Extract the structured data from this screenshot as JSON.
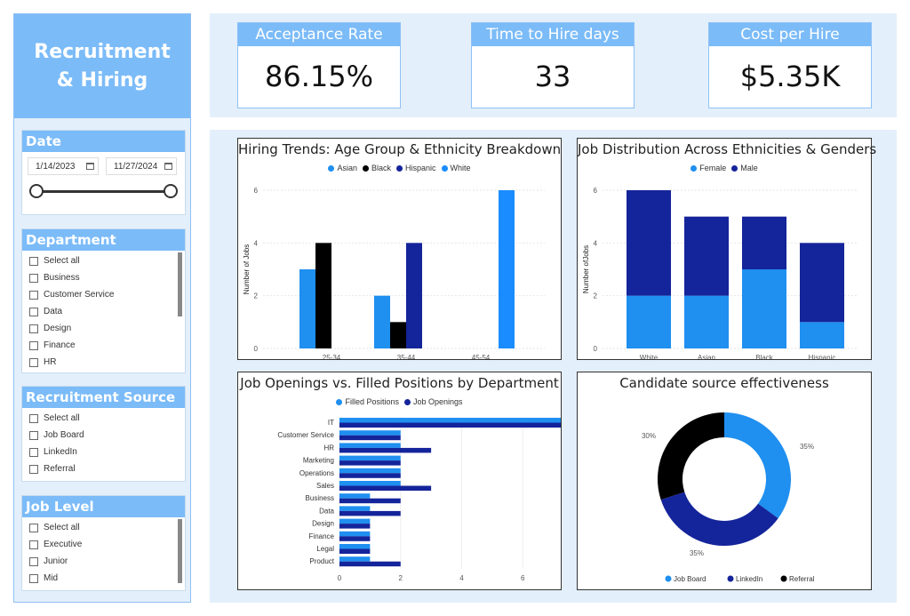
{
  "sidebar": {
    "title": "Recruitment & Hiring",
    "date_slicer": {
      "title": "Date",
      "start": "1/14/2023",
      "end": "11/27/2024"
    },
    "department_slicer": {
      "title": "Department",
      "items": [
        "Select all",
        "Business",
        "Customer Service",
        "Data",
        "Design",
        "Finance",
        "HR"
      ]
    },
    "source_slicer": {
      "title": "Recruitment Source",
      "items": [
        "Select all",
        "Job Board",
        "LinkedIn",
        "Referral"
      ]
    },
    "level_slicer": {
      "title": "Job Level",
      "items": [
        "Select all",
        "Executive",
        "Junior",
        "Mid"
      ]
    }
  },
  "kpis": [
    {
      "label": "Acceptance Rate",
      "value": "86.15%"
    },
    {
      "label": "Time to Hire days",
      "value": "33"
    },
    {
      "label": "Cost per Hire",
      "value": "$5.35K"
    }
  ],
  "colors": {
    "accent": "#7bbbf8",
    "band": "#e3effb",
    "asian": "#1f8ff0",
    "black": "#000000",
    "hispanic": "#14249a",
    "white": "#1a8cff",
    "female": "#1f8ff0",
    "male": "#14249a"
  },
  "chart_data": [
    {
      "type": "bar",
      "title": "Hiring Trends: Age Group & Ethnicity Breakdown",
      "ylabel": "Number of Jobs",
      "xlabel": "",
      "categories": [
        "25-34",
        "35-44",
        "45-54"
      ],
      "series": [
        {
          "name": "Asian",
          "color": "#1f8ff0",
          "values": [
            3,
            2,
            0
          ]
        },
        {
          "name": "Black",
          "color": "#000000",
          "values": [
            4,
            1,
            0
          ]
        },
        {
          "name": "Hispanic",
          "color": "#14249a",
          "values": [
            0,
            4,
            0
          ]
        },
        {
          "name": "White",
          "color": "#1a8cff",
          "values": [
            0,
            0,
            6
          ]
        }
      ],
      "ylim": [
        0,
        6
      ],
      "yticks": [
        0,
        2,
        4,
        6
      ],
      "legend": "top"
    },
    {
      "type": "bar",
      "stacked": true,
      "title": "Job Distribution Across Ethnicities & Genders",
      "ylabel": "Number ofJobs",
      "xlabel": "",
      "categories": [
        "White",
        "Asian",
        "Black",
        "Hispanic"
      ],
      "series": [
        {
          "name": "Female",
          "color": "#1f8ff0",
          "values": [
            2,
            2,
            3,
            1
          ]
        },
        {
          "name": "Male",
          "color": "#14249a",
          "values": [
            4,
            3,
            2,
            3
          ]
        }
      ],
      "ylim": [
        0,
        6
      ],
      "yticks": [
        0,
        2,
        4,
        6
      ],
      "legend": "top"
    },
    {
      "type": "bar",
      "orientation": "horizontal",
      "title": "Job Openings vs. Filled Positions by Department",
      "categories": [
        "IT",
        "Customer Service",
        "HR",
        "Marketing",
        "Operations",
        "Sales",
        "Business",
        "Data",
        "Design",
        "Finance",
        "Legal",
        "Product"
      ],
      "series": [
        {
          "name": "Filled Positions",
          "color": "#1f8ff0",
          "values": [
            8,
            2,
            2,
            2,
            2,
            2,
            1,
            1,
            1,
            1,
            1,
            1
          ]
        },
        {
          "name": "Job Openings",
          "color": "#14249a",
          "values": [
            8,
            2,
            3,
            2,
            2,
            3,
            2,
            2,
            1,
            1,
            1,
            2
          ]
        }
      ],
      "xlim": [
        0,
        8
      ],
      "xticks": [
        0,
        2,
        4,
        6,
        8
      ],
      "legend": "top"
    },
    {
      "type": "pie",
      "donut": true,
      "title": "Candidate source effectiveness",
      "labels": [
        "Job Board",
        "LinkedIn",
        "Referral"
      ],
      "values": [
        35,
        35,
        30
      ],
      "value_labels": [
        "35%",
        "35%",
        "30%"
      ],
      "colors": [
        "#1f8ff0",
        "#14249a",
        "#000000"
      ],
      "legend": "bottom"
    }
  ]
}
